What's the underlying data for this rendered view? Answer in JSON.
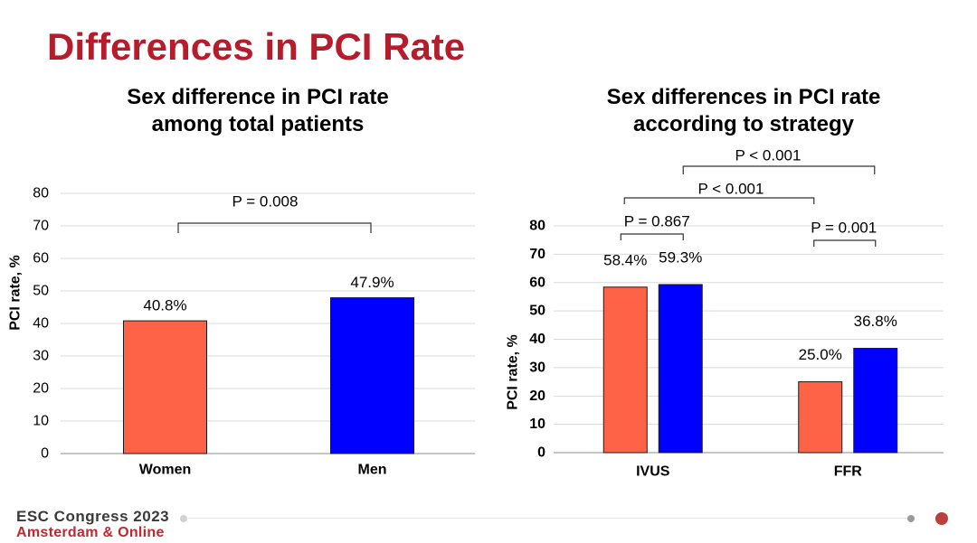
{
  "slide": {
    "title": "Differences in PCI Rate",
    "title_color": "#B71C2C"
  },
  "footer": {
    "event": "ESC Congress 2023",
    "location": "Amsterdam & Online",
    "location_color": "#C0282D"
  },
  "chart_data": [
    {
      "type": "bar",
      "title_lines": [
        "Sex difference in PCI rate",
        "among total patients"
      ],
      "categories": [
        "Women",
        "Men"
      ],
      "values": [
        40.8,
        47.9
      ],
      "data_labels": [
        "40.8%",
        "47.9%"
      ],
      "bar_colors": [
        "#FF6347",
        "#0000FF"
      ],
      "xlabel": "",
      "ylabel": "PCI rate, %",
      "ylim": [
        0,
        80
      ],
      "yticks": [
        0,
        10,
        20,
        30,
        40,
        50,
        60,
        70,
        80
      ],
      "grid": true,
      "legend": false,
      "annotations": [
        {
          "text": "P = 0.008",
          "between": [
            [
              0,
              0
            ],
            [
              1,
              0
            ]
          ]
        }
      ]
    },
    {
      "type": "bar",
      "title_lines": [
        "Sex differences in PCI rate",
        "according to strategy"
      ],
      "categories": [
        "IVUS",
        "FFR"
      ],
      "series": [
        {
          "values": [
            58.4,
            25.0
          ],
          "data_labels": [
            "58.4%",
            "25.0%"
          ],
          "color": "#FF6347"
        },
        {
          "values": [
            59.3,
            36.8
          ],
          "data_labels": [
            "59.3%",
            "36.8%"
          ],
          "color": "#0000FF"
        }
      ],
      "xlabel": "",
      "ylabel": "PCI rate, %",
      "ylim": [
        0,
        80
      ],
      "yticks": [
        0,
        10,
        20,
        30,
        40,
        50,
        60,
        70,
        80
      ],
      "grid": true,
      "legend": false,
      "annotations": [
        {
          "text": "P = 0.867",
          "between": [
            [
              0,
              0
            ],
            [
              0,
              1
            ]
          ]
        },
        {
          "text": "P = 0.001",
          "between": [
            [
              1,
              0
            ],
            [
              1,
              1
            ]
          ]
        },
        {
          "text": "P < 0.001",
          "between": [
            [
              0,
              0
            ],
            [
              1,
              0
            ]
          ]
        },
        {
          "text": "P < 0.001",
          "between": [
            [
              0,
              1
            ],
            [
              1,
              1
            ]
          ]
        }
      ]
    }
  ]
}
